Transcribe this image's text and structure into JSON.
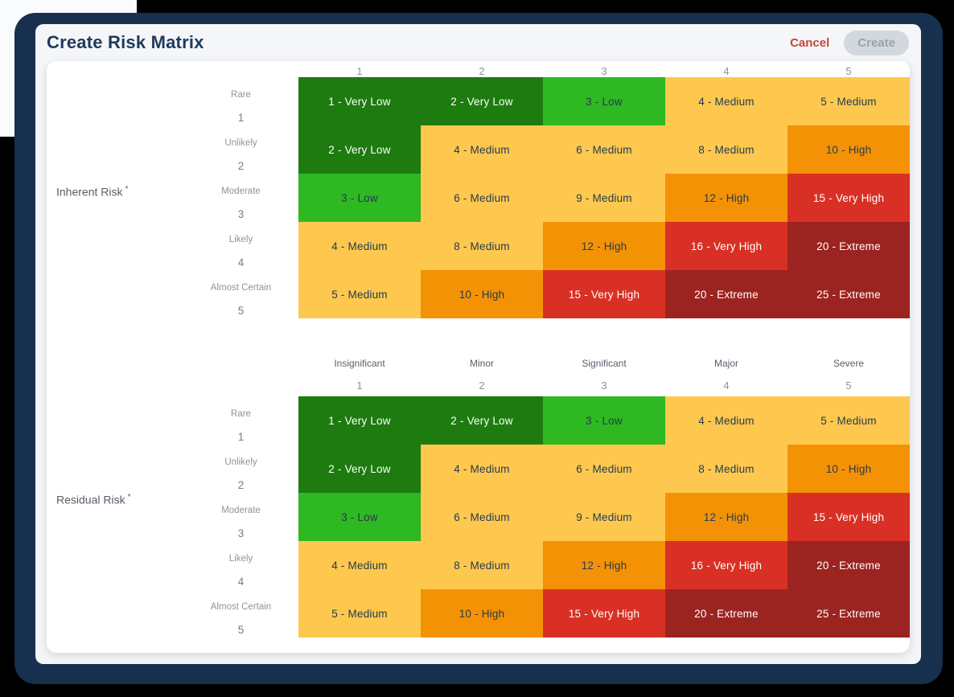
{
  "window": {
    "title": "Create Risk Matrix"
  },
  "actions": {
    "cancel": "Cancel",
    "create": "Create"
  },
  "likelihood_levels": [
    {
      "name": "Rare",
      "value": "1"
    },
    {
      "name": "Unlikely",
      "value": "2"
    },
    {
      "name": "Moderate",
      "value": "3"
    },
    {
      "name": "Likely",
      "value": "4"
    },
    {
      "name": "Almost Certain",
      "value": "5"
    }
  ],
  "severity_levels": [
    {
      "name": "Insignificant",
      "value": "1"
    },
    {
      "name": "Minor",
      "value": "2"
    },
    {
      "name": "Significant",
      "value": "3"
    },
    {
      "name": "Major",
      "value": "4"
    },
    {
      "name": "Severe",
      "value": "5"
    }
  ],
  "risk_levels": {
    "very_low": {
      "bg": "#1e7b10",
      "text": "#ffffff"
    },
    "low": {
      "bg": "#2eb822",
      "text": "#243a52"
    },
    "medium": {
      "bg": "#fec84e",
      "text": "#243a52"
    },
    "high": {
      "bg": "#f49206",
      "text": "#243a52"
    },
    "very_high": {
      "bg": "#d93025",
      "text": "#ffffff"
    },
    "extreme": {
      "bg": "#9b2420",
      "text": "#ffffff"
    }
  },
  "colors": {
    "frame_navy": "#16304e",
    "page_black": "#000000",
    "card_bg": "#f5f6f9",
    "panel_bg": "#ffffff",
    "title_navy": "#1d3a5e",
    "cancel_red": "#c5443a",
    "create_disabled_bg": "#d3d7de"
  },
  "matrices": [
    {
      "id": "inherent",
      "label": "Inherent Risk",
      "required_mark": "*",
      "show_severity_names": false,
      "rows": [
        [
          {
            "text": "1 - Very Low",
            "level": "very_low"
          },
          {
            "text": "2 - Very Low",
            "level": "very_low"
          },
          {
            "text": "3 - Low",
            "level": "low"
          },
          {
            "text": "4 - Medium",
            "level": "medium"
          },
          {
            "text": "5 - Medium",
            "level": "medium"
          }
        ],
        [
          {
            "text": "2 - Very Low",
            "level": "very_low"
          },
          {
            "text": "4 - Medium",
            "level": "medium"
          },
          {
            "text": "6 - Medium",
            "level": "medium"
          },
          {
            "text": "8 - Medium",
            "level": "medium"
          },
          {
            "text": "10 - High",
            "level": "high"
          }
        ],
        [
          {
            "text": "3 - Low",
            "level": "low"
          },
          {
            "text": "6 - Medium",
            "level": "medium"
          },
          {
            "text": "9 - Medium",
            "level": "medium"
          },
          {
            "text": "12 - High",
            "level": "high"
          },
          {
            "text": "15 - Very High",
            "level": "very_high"
          }
        ],
        [
          {
            "text": "4 - Medium",
            "level": "medium"
          },
          {
            "text": "8 - Medium",
            "level": "medium"
          },
          {
            "text": "12 - High",
            "level": "high"
          },
          {
            "text": "16 - Very High",
            "level": "very_high"
          },
          {
            "text": "20 - Extreme",
            "level": "extreme"
          }
        ],
        [
          {
            "text": "5 - Medium",
            "level": "medium"
          },
          {
            "text": "10 - High",
            "level": "high"
          },
          {
            "text": "15 - Very High",
            "level": "very_high"
          },
          {
            "text": "20 - Extreme",
            "level": "extreme"
          },
          {
            "text": "25 - Extreme",
            "level": "extreme"
          }
        ]
      ]
    },
    {
      "id": "residual",
      "label": "Residual Risk",
      "required_mark": "*",
      "show_severity_names": true,
      "rows": [
        [
          {
            "text": "1 - Very Low",
            "level": "very_low"
          },
          {
            "text": "2 - Very Low",
            "level": "very_low"
          },
          {
            "text": "3 - Low",
            "level": "low"
          },
          {
            "text": "4 - Medium",
            "level": "medium"
          },
          {
            "text": "5 - Medium",
            "level": "medium"
          }
        ],
        [
          {
            "text": "2 - Very Low",
            "level": "very_low"
          },
          {
            "text": "4 - Medium",
            "level": "medium"
          },
          {
            "text": "6 - Medium",
            "level": "medium"
          },
          {
            "text": "8 - Medium",
            "level": "medium"
          },
          {
            "text": "10 - High",
            "level": "high"
          }
        ],
        [
          {
            "text": "3 - Low",
            "level": "low"
          },
          {
            "text": "6 - Medium",
            "level": "medium"
          },
          {
            "text": "9 - Medium",
            "level": "medium"
          },
          {
            "text": "12 - High",
            "level": "high"
          },
          {
            "text": "15 - Very High",
            "level": "very_high"
          }
        ],
        [
          {
            "text": "4 - Medium",
            "level": "medium"
          },
          {
            "text": "8 - Medium",
            "level": "medium"
          },
          {
            "text": "12 - High",
            "level": "high"
          },
          {
            "text": "16 - Very High",
            "level": "very_high"
          },
          {
            "text": "20 - Extreme",
            "level": "extreme"
          }
        ],
        [
          {
            "text": "5 - Medium",
            "level": "medium"
          },
          {
            "text": "10 - High",
            "level": "high"
          },
          {
            "text": "15 - Very High",
            "level": "very_high"
          },
          {
            "text": "20 - Extreme",
            "level": "extreme"
          },
          {
            "text": "25 - Extreme",
            "level": "extreme"
          }
        ]
      ]
    }
  ]
}
